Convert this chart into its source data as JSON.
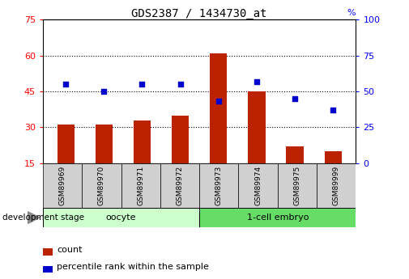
{
  "title": "GDS2387 / 1434730_at",
  "samples": [
    "GSM89969",
    "GSM89970",
    "GSM89971",
    "GSM89972",
    "GSM89973",
    "GSM89974",
    "GSM89975",
    "GSM89999"
  ],
  "counts": [
    31,
    31,
    33,
    35,
    61,
    45,
    22,
    20
  ],
  "percentiles": [
    55,
    50,
    55,
    55,
    43,
    57,
    45,
    37
  ],
  "oocyte_label": "oocyte",
  "embryo_label": "1-cell embryo",
  "group_label": "development stage",
  "bar_color": "#BB2200",
  "dot_color": "#0000CC",
  "group_color_light": "#CCFFCC",
  "group_color_strong": "#66DD66",
  "tick_bg": "#D0D0D0",
  "ylim_left": [
    15,
    75
  ],
  "yticks_left": [
    15,
    30,
    45,
    60,
    75
  ],
  "ylim_right": [
    0,
    100
  ],
  "yticks_right": [
    0,
    25,
    50,
    75,
    100
  ],
  "background_color": "#ffffff",
  "count_legend": "count",
  "pct_legend": "percentile rank within the sample"
}
